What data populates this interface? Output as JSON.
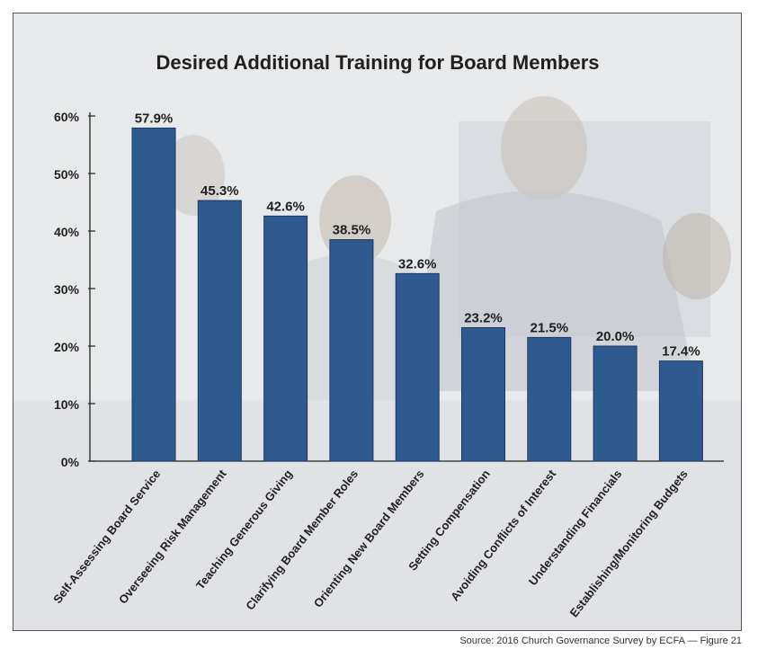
{
  "chart_data": {
    "type": "bar",
    "title": "Desired Additional Training for Board Members",
    "categories": [
      "Self-Assessing Board Service",
      "Overseeing Risk Management",
      "Teaching Generous Giving",
      "Clarifying Board Member Roles",
      "Orienting New Board Members",
      "Setting Compensation",
      "Avoiding Conflicts of Interest",
      "Understanding Financials",
      "Establishing/Monitoring Budgets"
    ],
    "values": [
      57.9,
      45.3,
      42.6,
      38.5,
      32.6,
      23.2,
      21.5,
      20.0,
      17.4
    ],
    "value_labels": [
      "57.9%",
      "45.3%",
      "42.6%",
      "38.5%",
      "32.6%",
      "23.2%",
      "21.5%",
      "20.0%",
      "17.4%"
    ],
    "yticks": [
      "0%",
      "10%",
      "20%",
      "30%",
      "40%",
      "50%",
      "60%"
    ],
    "ylim": [
      0,
      60
    ],
    "xlabel": "",
    "ylabel": "",
    "grid": false,
    "bar_color": "#2f5a8f"
  },
  "footer": {
    "source": "Source: 2016 Church Governance Survey by ECFA — Figure 21"
  }
}
